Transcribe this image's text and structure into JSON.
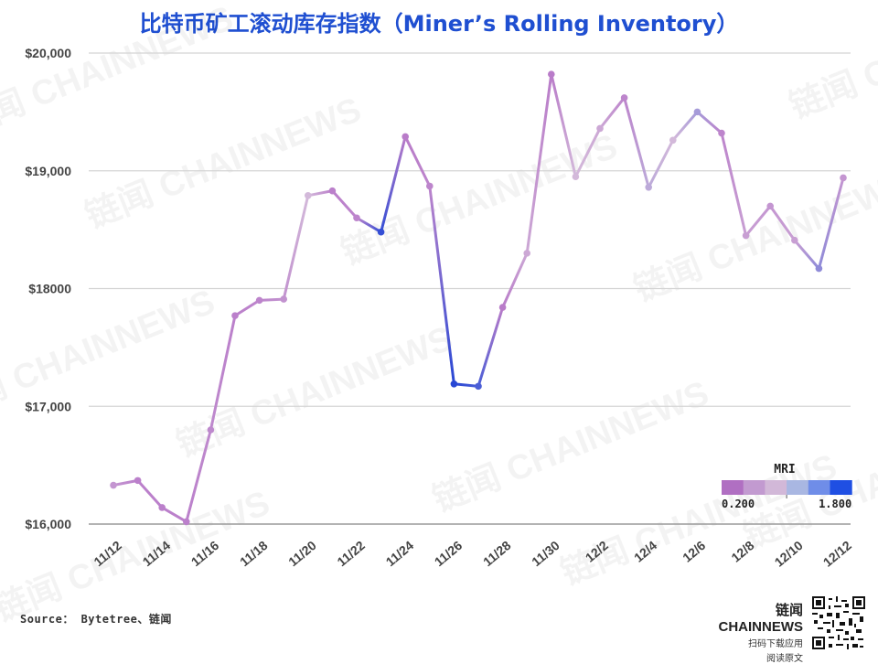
{
  "title": "比特币矿工滚动库存指数（Miner’s Rolling Inventory）",
  "source": "Source： Bytetree、链闻",
  "brand": {
    "name": "链闻 CHAINNEWS",
    "line1": "扫码下载应用",
    "line2": "阅读原文",
    "watermark": "链闻 CHAINNEWS"
  },
  "chart_data": {
    "type": "line",
    "title": "比特币矿工滚动库存指数（Miner’s Rolling Inventory）",
    "xlabel": "",
    "ylabel": "",
    "ylim": [
      16000,
      20000
    ],
    "y_ticks": [
      16000,
      17000,
      18000,
      19000,
      20000
    ],
    "y_tick_labels": [
      "$16,000",
      "$17,000",
      "$18000",
      "$19,000",
      "$20,000"
    ],
    "x_tick_labels": [
      "11/12",
      "11/14",
      "11/16",
      "11/18",
      "11/20",
      "11/22",
      "11/24",
      "11/26",
      "11/28",
      "11/30",
      "12/2",
      "12/4",
      "12/6",
      "12/8",
      "12/10",
      "12/12"
    ],
    "grid": true,
    "series": [
      {
        "dates": [
          "11/12",
          "11/13",
          "11/14",
          "11/15",
          "11/16",
          "11/17",
          "11/18",
          "11/19",
          "11/20",
          "11/21",
          "11/22",
          "11/23",
          "11/24",
          "11/25",
          "11/26",
          "11/27",
          "11/28",
          "11/29",
          "11/30",
          "12/1",
          "12/2",
          "12/3",
          "12/4",
          "12/5",
          "12/6",
          "12/7",
          "12/8",
          "12/9",
          "12/10",
          "12/11",
          "12/12"
        ],
        "price": [
          16330,
          16370,
          16140,
          16020,
          16800,
          17770,
          17900,
          17910,
          18790,
          18830,
          18600,
          18480,
          19290,
          18870,
          17190,
          17170,
          17840,
          18300,
          19820,
          18950,
          19360,
          19620,
          18860,
          19260,
          19500,
          19320,
          18450,
          18700,
          18410,
          18170,
          18940
        ],
        "mri": [
          0.6,
          0.35,
          0.35,
          0.35,
          0.45,
          0.35,
          0.4,
          0.55,
          1.0,
          0.35,
          0.4,
          1.7,
          0.3,
          0.4,
          1.75,
          1.6,
          0.3,
          0.8,
          0.3,
          1.0,
          0.8,
          0.4,
          1.1,
          1.0,
          1.2,
          0.4,
          0.7,
          0.6,
          0.7,
          1.3,
          0.6
        ]
      }
    ],
    "legend": {
      "title": "MRI",
      "min_label": "0.200",
      "max_label": "1.800",
      "placement": "bottom-right",
      "colors": [
        "#b06fc2",
        "#c29ad0",
        "#d2b8d8",
        "#a9b7e2",
        "#6f8de8",
        "#1f4fe3"
      ]
    },
    "line_color_low": "#b573c7",
    "line_color_mid": "#d3b9da",
    "line_color_high": "#1d3fd4"
  }
}
